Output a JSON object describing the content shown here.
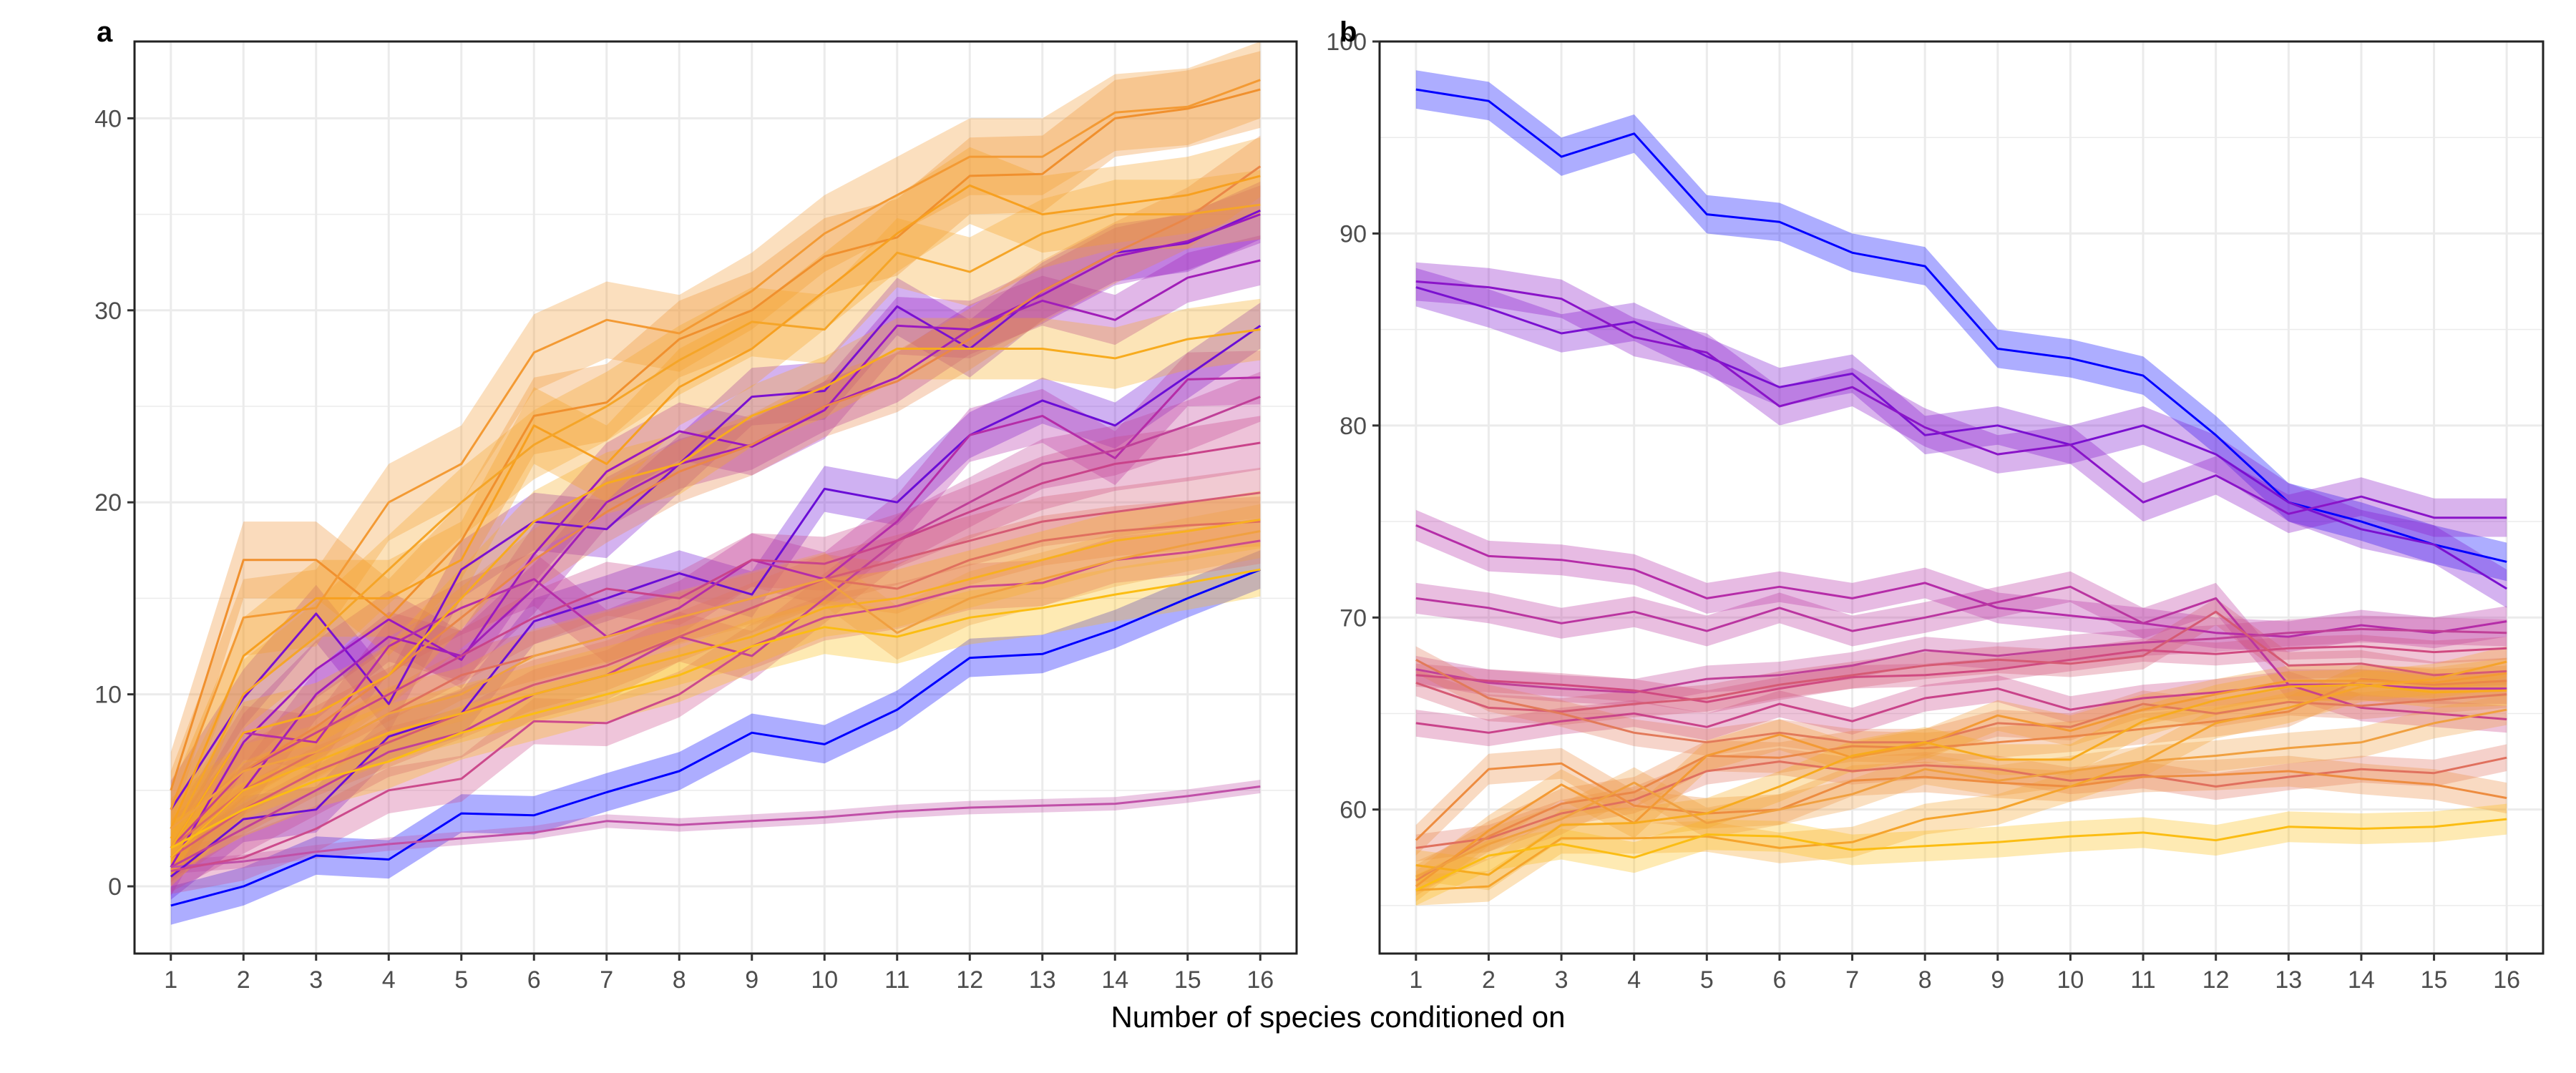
{
  "figure": {
    "xlabel": "Number of species conditioned on"
  },
  "colors": {
    "grid": "#ebebeb",
    "frame": "#222222",
    "palette": [
      "#0000ff",
      "#6a0dd6",
      "#8a14c8",
      "#a61fb4",
      "#b92fa0",
      "#c9438a",
      "#d55a74",
      "#e0705e",
      "#ea8748",
      "#f39a34",
      "#f7ab1e",
      "#fbbd13"
    ]
  },
  "chart_data": [
    {
      "panel_label": "a",
      "type": "line",
      "band": "confidence ribbon per line",
      "xticks": [
        1,
        2,
        3,
        4,
        5,
        6,
        7,
        8,
        9,
        10,
        11,
        12,
        13,
        14,
        15,
        16
      ],
      "yticks": [
        0,
        10,
        20,
        30,
        40
      ],
      "xlim": [
        0.5,
        16.5
      ],
      "ylim": [
        -3.5,
        44
      ],
      "grid": true,
      "series": [
        {
          "color": "#0000ff",
          "band": 1.0,
          "values": [
            -1,
            0,
            1.6,
            1.4,
            3.8,
            3.7,
            4.9,
            6,
            8,
            7.4,
            9.2,
            11.9,
            12.1,
            13.4,
            15,
            16.5
          ]
        },
        {
          "color": "#c050a8",
          "band": 0.35,
          "values": [
            1,
            1.3,
            1.8,
            2.2,
            2.5,
            2.8,
            3.4,
            3.2,
            3.4,
            3.6,
            3.9,
            4.1,
            4.2,
            4.3,
            4.7,
            5.2
          ]
        },
        {
          "color": "#6a0dd6",
          "band": 1.2,
          "values": [
            0.5,
            3.5,
            4,
            7.8,
            9,
            13.8,
            15,
            16.3,
            15.2,
            20.7,
            20,
            23.5,
            25.3,
            24,
            26.6,
            29.2
          ]
        },
        {
          "color": "#7a10d0",
          "band": 1.5,
          "values": [
            4,
            9.8,
            14.2,
            9.5,
            16.5,
            19,
            18.6,
            22,
            25.5,
            25.8,
            30.2,
            28,
            31,
            33,
            33.5,
            35.2
          ]
        },
        {
          "color": "#9a18c0",
          "band": 1.5,
          "values": [
            1,
            7.5,
            11.3,
            13.9,
            11.8,
            17.3,
            21.6,
            23.7,
            22.9,
            24.8,
            29.2,
            29,
            30.8,
            32.8,
            33.6,
            35
          ]
        },
        {
          "color": "#a11eb8",
          "band": 1.3,
          "values": [
            1.5,
            5,
            10,
            13,
            12,
            15.5,
            20,
            22,
            23,
            25,
            26.5,
            29,
            30.5,
            29.5,
            31.7,
            32.6
          ]
        },
        {
          "color": "#b52ca8",
          "band": 1.4,
          "values": [
            2,
            8,
            7.5,
            12.5,
            14.5,
            16,
            13,
            14.5,
            17,
            16,
            19,
            23.5,
            24.5,
            22.3,
            26.4,
            26.5
          ]
        },
        {
          "color": "#c04098",
          "band": 1.3,
          "values": [
            1,
            3,
            5,
            7,
            8,
            10,
            11,
            13,
            12,
            15,
            18,
            20,
            22,
            22.7,
            24,
            25.5
          ]
        },
        {
          "color": "#c9438a",
          "band": 1.4,
          "values": [
            2,
            6,
            8,
            10,
            12,
            14,
            15.5,
            15,
            17,
            16.8,
            18,
            19.5,
            21,
            22,
            22.5,
            23.1
          ]
        },
        {
          "color": "#cc4a8c",
          "band": 1.2,
          "values": [
            0.8,
            1.5,
            3,
            5,
            5.6,
            8.6,
            8.5,
            10,
            12.5,
            14,
            14.6,
            15.6,
            15.8,
            17,
            17.4,
            18
          ]
        },
        {
          "color": "#d55a74",
          "band": 1.3,
          "values": [
            1.5,
            4,
            6,
            7.5,
            9,
            10.5,
            11.5,
            13,
            14.5,
            16,
            17,
            18,
            19,
            19.5,
            20,
            20.5
          ]
        },
        {
          "color": "#e0705e",
          "band": 1.3,
          "values": [
            2,
            5,
            7,
            9,
            11,
            12,
            13,
            14,
            15,
            16,
            15.5,
            17,
            18,
            18.5,
            18.8,
            19
          ]
        },
        {
          "color": "#ea8748",
          "band": 1.6,
          "values": [
            3,
            6,
            8.3,
            11,
            14,
            17,
            19.5,
            21.6,
            23,
            25,
            26.3,
            28.5,
            31,
            33,
            34.8,
            37.5
          ]
        },
        {
          "color": "#f0902e",
          "band": 2.0,
          "values": [
            5,
            17,
            17,
            14,
            18,
            24.5,
            25.2,
            28.5,
            30,
            32.8,
            33.8,
            37,
            37.1,
            40,
            40.5,
            41.5
          ]
        },
        {
          "color": "#f39a34",
          "band": 2.0,
          "values": [
            4,
            14,
            14.5,
            20,
            22,
            27.8,
            29.5,
            28.8,
            31,
            34,
            36,
            38,
            38,
            40.3,
            40.6,
            42
          ]
        },
        {
          "color": "#f7a020",
          "band": 2.0,
          "values": [
            3,
            12,
            15,
            15,
            17,
            24,
            22,
            26,
            28,
            31,
            34,
            36.5,
            35,
            35.5,
            36,
            37
          ]
        },
        {
          "color": "#f5a528",
          "band": 1.8,
          "values": [
            2.5,
            10,
            13,
            16.5,
            20,
            23,
            25,
            27.4,
            29.4,
            29,
            33,
            32,
            34,
            35,
            35,
            35.5
          ]
        },
        {
          "color": "#f7ab1e",
          "band": 1.6,
          "values": [
            2,
            8,
            9,
            11,
            15,
            19,
            21,
            22,
            24.5,
            26,
            28,
            28,
            28,
            27.5,
            28.5,
            29
          ]
        },
        {
          "color": "#f8b020",
          "band": 1.5,
          "values": [
            1.5,
            5,
            6.5,
            8,
            9,
            10,
            11,
            12,
            13,
            14.5,
            15,
            16,
            17,
            18,
            18.5,
            19.1
          ]
        },
        {
          "color": "#fbbd13",
          "band": 1.4,
          "values": [
            2,
            4,
            5.5,
            6.5,
            8,
            9,
            10,
            11,
            12.5,
            13.5,
            13,
            14,
            14.5,
            15.2,
            15.8,
            16.5
          ]
        },
        {
          "color": "#f0a040",
          "band": 1.4,
          "values": [
            3,
            6,
            7,
            9,
            10,
            12,
            13,
            14,
            15,
            16,
            13.2,
            15,
            16,
            17,
            17.8,
            18.5
          ]
        }
      ]
    },
    {
      "panel_label": "b",
      "type": "line",
      "band": "confidence ribbon per line",
      "xticks": [
        1,
        2,
        3,
        4,
        5,
        6,
        7,
        8,
        9,
        10,
        11,
        12,
        13,
        14,
        15,
        16
      ],
      "yticks": [
        60,
        70,
        80,
        90,
        100
      ],
      "xlim": [
        0.5,
        16.5
      ],
      "ylim": [
        52.5,
        100
      ],
      "grid": true,
      "series": [
        {
          "color": "#0000ff",
          "band": 1.0,
          "values": [
            97.5,
            96.9,
            94,
            95.2,
            91,
            90.6,
            89,
            88.3,
            84,
            83.5,
            82.6,
            79.5,
            76,
            75,
            73.8,
            72.9
          ]
        },
        {
          "color": "#7a10d0",
          "band": 1.0,
          "values": [
            87.2,
            86.1,
            84.8,
            85.4,
            83.6,
            82,
            82.7,
            79.5,
            80,
            79,
            80,
            78.5,
            76,
            74.6,
            73.8,
            71.5
          ]
        },
        {
          "color": "#8a14c8",
          "band": 1.0,
          "values": [
            87.5,
            87.2,
            86.6,
            84.6,
            83.8,
            81,
            82,
            79.9,
            78.5,
            79,
            76,
            77.4,
            75.4,
            76.3,
            75.2,
            75.2
          ]
        },
        {
          "color": "#b52ca8",
          "band": 0.8,
          "values": [
            74.8,
            73.2,
            73,
            72.5,
            71,
            71.6,
            71,
            71.8,
            70.5,
            70.1,
            69.7,
            69.2,
            69,
            69.6,
            69.2,
            69.8
          ]
        },
        {
          "color": "#ba35a0",
          "band": 0.8,
          "values": [
            71,
            70.5,
            69.7,
            70.3,
            69.3,
            70.5,
            69.3,
            70,
            70.8,
            71.6,
            69.7,
            71,
            66.5,
            66.5,
            66.3,
            66.3
          ]
        },
        {
          "color": "#c04098",
          "band": 0.7,
          "values": [
            67.3,
            66.6,
            66.3,
            66.1,
            66.8,
            67,
            67.5,
            68.3,
            68,
            68.4,
            68.7,
            68.9,
            69.2,
            69.4,
            69.3,
            69.2
          ]
        },
        {
          "color": "#c9438a",
          "band": 0.7,
          "values": [
            64.5,
            64,
            64.6,
            65,
            64.3,
            65.5,
            64.6,
            65.8,
            66.3,
            65.2,
            65.8,
            66.1,
            66.5,
            65.3,
            65,
            64.7
          ]
        },
        {
          "color": "#d04a80",
          "band": 0.6,
          "values": [
            67,
            66.7,
            66.5,
            66.2,
            65.6,
            66.3,
            66.9,
            67,
            67.3,
            67.8,
            68.3,
            68.1,
            68.4,
            68.5,
            68.2,
            68.4
          ]
        },
        {
          "color": "#d55a74",
          "band": 0.7,
          "values": [
            66.6,
            65.3,
            65.1,
            65.5,
            65.8,
            66.5,
            67,
            67.5,
            67.8,
            67.6,
            68,
            70.3,
            67.5,
            67.6,
            67,
            67.2
          ]
        },
        {
          "color": "#e0705e",
          "band": 0.7,
          "values": [
            58,
            58.5,
            59.8,
            60.5,
            62,
            62.5,
            62,
            62.3,
            62.1,
            61.5,
            61.8,
            61.2,
            61.7,
            62.1,
            61.9,
            62.7
          ]
        },
        {
          "color": "#e27a5a",
          "band": 0.7,
          "values": [
            67.8,
            65.8,
            65,
            64,
            63.5,
            64,
            63.5,
            63.5,
            64.5,
            64.3,
            65.5,
            65,
            65.6,
            65.4,
            65.7,
            66
          ]
        },
        {
          "color": "#ea8748",
          "band": 0.8,
          "values": [
            56.3,
            58.6,
            60.3,
            60.9,
            62.8,
            62.7,
            63.3,
            63.2,
            63.5,
            63.8,
            64.2,
            64.6,
            65.1,
            66.8,
            66.5,
            66.7
          ]
        },
        {
          "color": "#ed8c40",
          "band": 0.8,
          "values": [
            58.4,
            62.1,
            62.4,
            60.2,
            59.8,
            60,
            61.5,
            61.7,
            61.4,
            61.2,
            61.7,
            61.8,
            62,
            61.6,
            61.3,
            60.6
          ]
        },
        {
          "color": "#f39a34",
          "band": 0.8,
          "values": [
            56,
            58.9,
            61.3,
            59.3,
            62.8,
            63.9,
            62.7,
            63.4,
            64.9,
            64.1,
            65.2,
            66,
            66.7,
            66.7,
            66.6,
            67.1
          ]
        },
        {
          "color": "#f5a42c",
          "band": 0.8,
          "values": [
            55.8,
            56,
            58.5,
            58.5,
            58.6,
            58,
            58.3,
            59.5,
            60,
            61.2,
            62.5,
            64.5,
            65.3,
            66.4,
            66.8,
            67.7
          ]
        },
        {
          "color": "#f7ab1e",
          "band": 0.8,
          "values": [
            57.1,
            56.6,
            59.2,
            59.3,
            59.8,
            61.2,
            62.8,
            63.5,
            62.6,
            62.6,
            64.6,
            65.7,
            66.4,
            66.5,
            66.1,
            66.2
          ]
        },
        {
          "color": "#fbbd13",
          "band": 0.8,
          "values": [
            55.8,
            57.6,
            58.2,
            57.5,
            58.7,
            58.6,
            57.9,
            58.1,
            58.3,
            58.6,
            58.8,
            58.4,
            59.1,
            59,
            59.1,
            59.5
          ]
        },
        {
          "color": "#f0a040",
          "band": 0.8,
          "values": [
            56.5,
            58.2,
            59.5,
            61.4,
            59.3,
            60,
            60.8,
            62.1,
            61.5,
            62,
            62.5,
            62.8,
            63.2,
            63.5,
            64.5,
            65.2
          ]
        }
      ]
    }
  ]
}
